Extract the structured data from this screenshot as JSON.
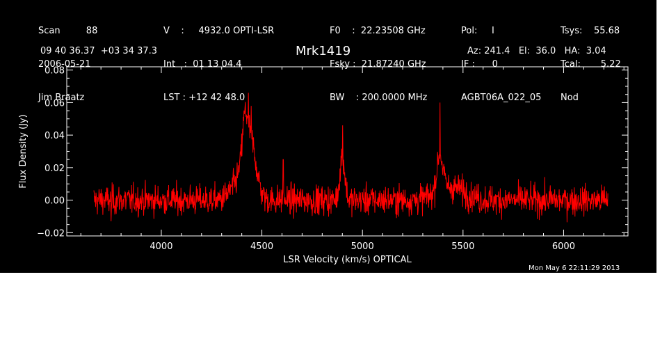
{
  "header": {
    "col1": [
      "Scan         88",
      "2006-05-21",
      "Jim Braatz"
    ],
    "col2": [
      "V    :     4932.0 OPTI-LSR",
      "Int   :  01 13 04.4",
      "LST : +12 42 48.0"
    ],
    "col3": [
      "F0    :  22.23508 GHz",
      "Fsky :  21.87240 GHz",
      "BW    : 200.0000 MHz"
    ],
    "col4": [
      "Pol:     I",
      "IF :      0",
      "AGBT06A_022_05"
    ],
    "col5": [
      "Tsys:    55.68",
      "Tcal:       5.22",
      "Nod"
    ],
    "coords": "09 40 36.37  +03 34 37.3",
    "source": "Mrk1419",
    "pointing": "Az: 241.4   El:  36.0   HA:  3.04",
    "timestamp": "Mon May  6 22:11:29 2013"
  },
  "chart_data": {
    "type": "line",
    "title": "Mrk1419",
    "xlabel": "LSR Velocity (km/s) OPTICAL",
    "ylabel": "Flux Density (Jy)",
    "xlim": [
      3530,
      6320
    ],
    "ylim": [
      -0.022,
      0.082
    ],
    "x_ticks": [
      4000,
      4500,
      5000,
      5500,
      6000
    ],
    "x_tick_labels": [
      "4000",
      "4500",
      "5000",
      "5500",
      "6000"
    ],
    "y_ticks": [
      -0.02,
      0.0,
      0.02,
      0.04,
      0.06,
      0.08
    ],
    "y_tick_labels": [
      "−0.02",
      "0.00",
      "0.02",
      "0.04",
      "0.06",
      "0.08"
    ],
    "series": [
      {
        "color": "#ff0000",
        "x_start": 3665,
        "x_end": 6220,
        "baseline": 0.0,
        "noise_rms": 0.0045,
        "features": [
          {
            "center": 4440,
            "width": 30,
            "peak": 0.037
          },
          {
            "center": 4415,
            "width": 12,
            "peak": 0.02
          },
          {
            "center": 4385,
            "width": 40,
            "peak": 0.01
          },
          {
            "center": 4900,
            "width": 12,
            "peak": 0.028
          },
          {
            "center": 5385,
            "width": 15,
            "peak": 0.022
          },
          {
            "center": 5440,
            "width": 70,
            "peak": 0.008
          }
        ],
        "spikes": [
          {
            "x": 4433,
            "y": 0.066
          },
          {
            "x": 4447,
            "y": 0.058
          },
          {
            "x": 4606,
            "y": 0.025
          },
          {
            "x": 4902,
            "y": 0.046
          },
          {
            "x": 5386,
            "y": 0.06
          },
          {
            "x": 3750,
            "y": -0.013
          }
        ]
      }
    ]
  }
}
